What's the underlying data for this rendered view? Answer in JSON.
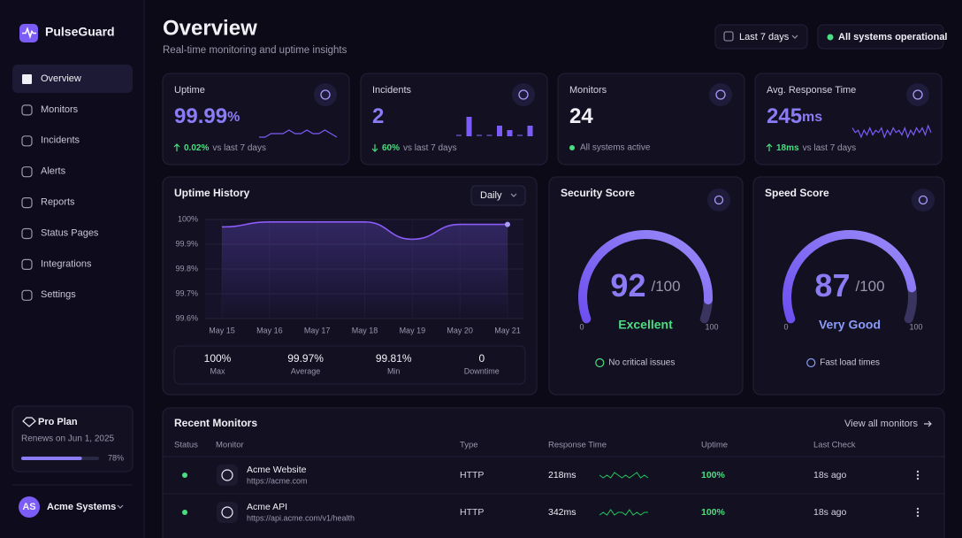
{
  "sidebar": {
    "brand": "PulseGuard",
    "nav": [
      "Overview",
      "Monitors",
      "Incidents",
      "Alerts",
      "Reports",
      "Status Pages",
      "Integrations",
      "Settings"
    ],
    "plan": {
      "name": "Pro Plan",
      "renews": "Renews on Jun 1, 2025",
      "progress": 78,
      "progress_label": "78%"
    },
    "user": {
      "initials": "AS",
      "name": "Acme Systems"
    }
  },
  "header": {
    "title": "Overview",
    "subtitle": "Real-time monitoring and uptime insights",
    "range": "Last 7 days",
    "status": "All systems operational"
  },
  "stats": [
    {
      "label": "Uptime",
      "value": "99.99",
      "unit": "%",
      "change": "0.02%",
      "change_text": "vs last 7 days",
      "chart": "line",
      "trend": [
        2,
        2,
        3,
        3,
        3,
        4,
        3,
        3,
        4,
        3,
        3,
        4,
        3,
        2
      ]
    },
    {
      "label": "Incidents",
      "value": "2",
      "change": "60%",
      "change_text": "vs last 7 days",
      "chart": "bar",
      "trend": [
        0,
        4,
        0,
        0,
        2,
        1,
        0,
        2
      ]
    },
    {
      "label": "Monitors",
      "value": "24",
      "note": "All systems active"
    },
    {
      "label": "Avg. Response Time",
      "value": "245",
      "unit": "ms",
      "change": "18ms",
      "change_text": "vs last 7 days",
      "chart": "line",
      "trend": [
        5,
        3,
        4,
        1,
        4,
        2,
        5,
        2,
        4,
        3,
        5,
        1,
        4,
        2,
        5,
        3,
        4,
        2,
        5,
        1,
        4,
        2,
        5,
        3,
        5,
        2,
        6,
        3
      ]
    }
  ],
  "uptime_history": {
    "type": "line",
    "title": "Uptime History",
    "period": "Daily",
    "categories": [
      "May 15",
      "May 16",
      "May 17",
      "May 18",
      "May 19",
      "May 20",
      "May 21"
    ],
    "values": [
      99.97,
      99.99,
      99.99,
      99.99,
      99.92,
      99.98,
      99.98
    ],
    "color": "#8b5cf6",
    "grid": true,
    "ylim": [
      99.6,
      100
    ],
    "yticks": [
      {
        "value": 99.6,
        "label": "99.6%"
      },
      {
        "value": 99.7,
        "label": "99.7%"
      },
      {
        "value": 99.8,
        "label": "99.8%"
      },
      {
        "value": 99.9,
        "label": "99.9%"
      },
      {
        "value": 100,
        "label": "100%"
      }
    ],
    "summary": [
      {
        "value": "100%",
        "label": "Max"
      },
      {
        "value": "99.97%",
        "label": "Average"
      },
      {
        "value": "99.81%",
        "label": "Min"
      },
      {
        "value": "0",
        "label": "Downtime"
      }
    ]
  },
  "gauges": [
    {
      "title": "Security Score",
      "score": 92,
      "scale_label": "/100",
      "min": 0,
      "max": 100,
      "rating": "Excellent",
      "note": "No critical issues"
    },
    {
      "title": "Speed Score",
      "score": 87,
      "scale_label": "/100",
      "min": 0,
      "max": 100,
      "rating": "Very Good",
      "note": "Fast load times"
    }
  ],
  "table": {
    "title": "Recent Monitors",
    "link": "View all monitors",
    "columns": [
      "Status",
      "Monitor",
      "Type",
      "Response Time",
      "Uptime",
      "Last Check"
    ],
    "rows": [
      {
        "name": "Acme Website",
        "url": "https://acme.com",
        "type": "HTTP",
        "response": "218ms",
        "trend": [
          3,
          2,
          3,
          2,
          4,
          3,
          2,
          3,
          2,
          3,
          4,
          2,
          3,
          2
        ],
        "uptime": "100%",
        "last_check": "18s ago"
      },
      {
        "name": "Acme API",
        "url": "https://api.acme.com/v1/health",
        "type": "HTTP",
        "response": "342ms",
        "trend": [
          2,
          3,
          2,
          4,
          2,
          3,
          3,
          2,
          4,
          2,
          3,
          2,
          3,
          3
        ],
        "uptime": "100%",
        "last_check": "18s ago"
      }
    ]
  }
}
